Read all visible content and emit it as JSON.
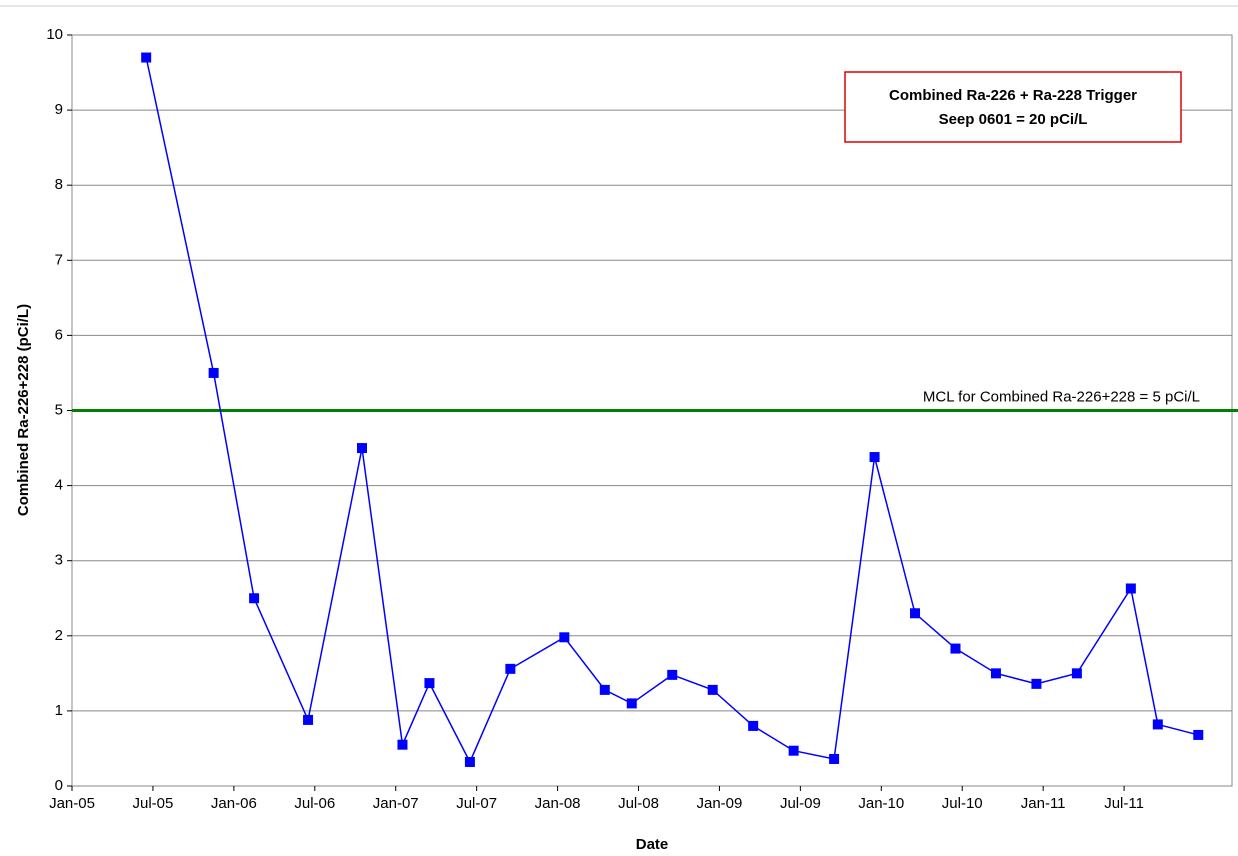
{
  "chart_data": {
    "type": "line",
    "y_label": "Combined Ra-226+228 (pCi/L)",
    "x_label": "Date",
    "annotation": [
      "Combined Ra-226 + Ra-228 Trigger",
      "Seep 0601 = 20 pCi/L"
    ],
    "reference_lines": [
      {
        "value": 5,
        "label": "MCL for Combined Ra-226+228 = 5 pCi/L",
        "color": "#008000"
      }
    ],
    "x": [
      "2005-06",
      "2005-11",
      "2006-02",
      "2006-06",
      "2006-10",
      "2007-01",
      "2007-03",
      "2007-06",
      "2007-09",
      "2008-01",
      "2008-04",
      "2008-06",
      "2008-09",
      "2008-12",
      "2009-03",
      "2009-06",
      "2009-09",
      "2009-12",
      "2010-03",
      "2010-06",
      "2010-09",
      "2010-12",
      "2011-03",
      "2011-07",
      "2011-09",
      "2011-12"
    ],
    "series": [
      {
        "color": "#0000ff",
        "values": [
          9.7,
          5.5,
          2.5,
          0.88,
          4.5,
          0.55,
          1.37,
          0.32,
          1.56,
          1.98,
          1.28,
          1.1,
          1.48,
          1.28,
          0.8,
          0.47,
          0.36,
          4.38,
          2.3,
          1.83,
          1.5,
          1.36,
          1.5,
          2.63,
          0.82,
          0.68
        ]
      }
    ],
    "xlim": [
      "2005-01",
      "2012-03"
    ],
    "xticks": [
      {
        "value": "2005-01",
        "label": "Jan-05"
      },
      {
        "value": "2005-07",
        "label": "Jul-05"
      },
      {
        "value": "2006-01",
        "label": "Jan-06"
      },
      {
        "value": "2006-07",
        "label": "Jul-06"
      },
      {
        "value": "2007-01",
        "label": "Jan-07"
      },
      {
        "value": "2007-07",
        "label": "Jul-07"
      },
      {
        "value": "2008-01",
        "label": "Jan-08"
      },
      {
        "value": "2008-07",
        "label": "Jul-08"
      },
      {
        "value": "2009-01",
        "label": "Jan-09"
      },
      {
        "value": "2009-07",
        "label": "Jul-09"
      },
      {
        "value": "2010-01",
        "label": "Jan-10"
      },
      {
        "value": "2010-07",
        "label": "Jul-10"
      },
      {
        "value": "2011-01",
        "label": "Jan-11"
      },
      {
        "value": "2011-07",
        "label": "Jul-11"
      }
    ],
    "ylim": [
      0,
      10
    ],
    "yticks": [
      0,
      1,
      2,
      3,
      4,
      5,
      6,
      7,
      8,
      9,
      10
    ],
    "grid": true
  }
}
